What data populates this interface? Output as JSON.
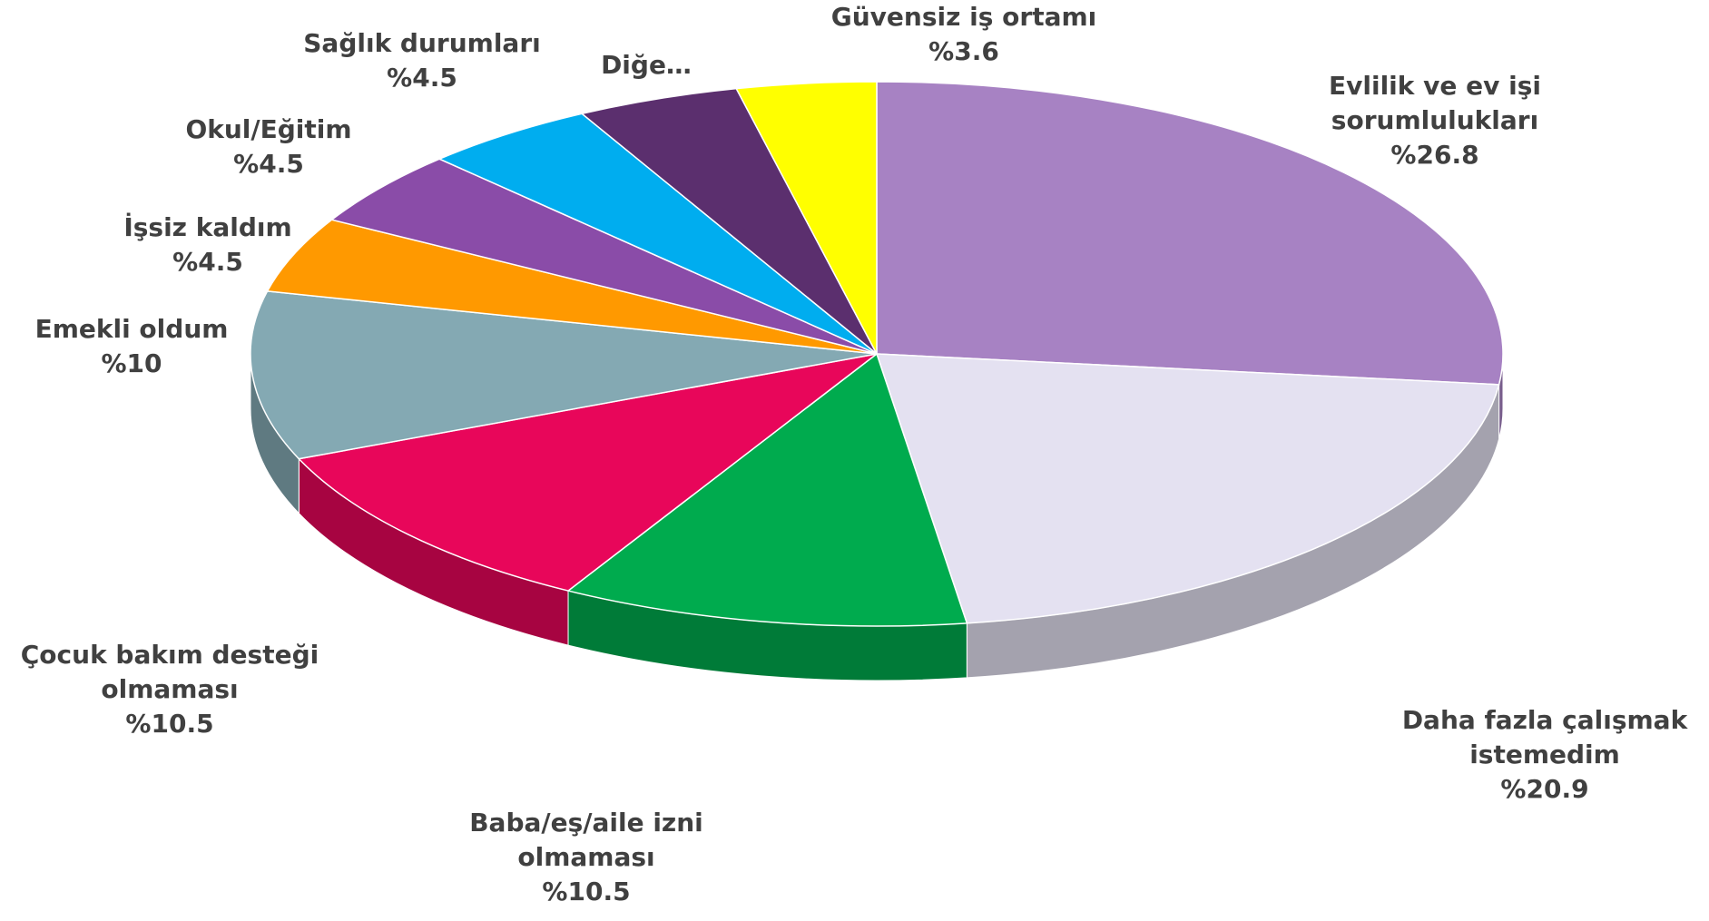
{
  "chart_data": {
    "type": "pie",
    "categories": [
      "Evlilik ve ev işi sorumlulukları",
      "Daha fazla çalışmak istemedim",
      "Baba/eş/aile izni olmaması",
      "Çocuk bakım desteği olmaması",
      "Emekli oldum",
      "İşsiz kaldım",
      "Okul/Eğitim",
      "Sağlık durumları",
      "Diğe…",
      "Güvensiz iş ortamı"
    ],
    "values": [
      26.8,
      20.9,
      10.5,
      10.5,
      10,
      4.5,
      4.5,
      4.5,
      4.2,
      3.6
    ],
    "value_labels": [
      "%26.8",
      "%20.9",
      "%10.5",
      "%10.5",
      "%10",
      "%4.5",
      "%4.5",
      "%4.5",
      null,
      "%3.6"
    ],
    "colors": [
      "#a782c3",
      "#e4e1f1",
      "#00ab4e",
      "#e8065a",
      "#84a9b3",
      "#ff9900",
      "#8a4ca8",
      "#00adef",
      "#5b2f6e",
      "#ffff00"
    ]
  }
}
